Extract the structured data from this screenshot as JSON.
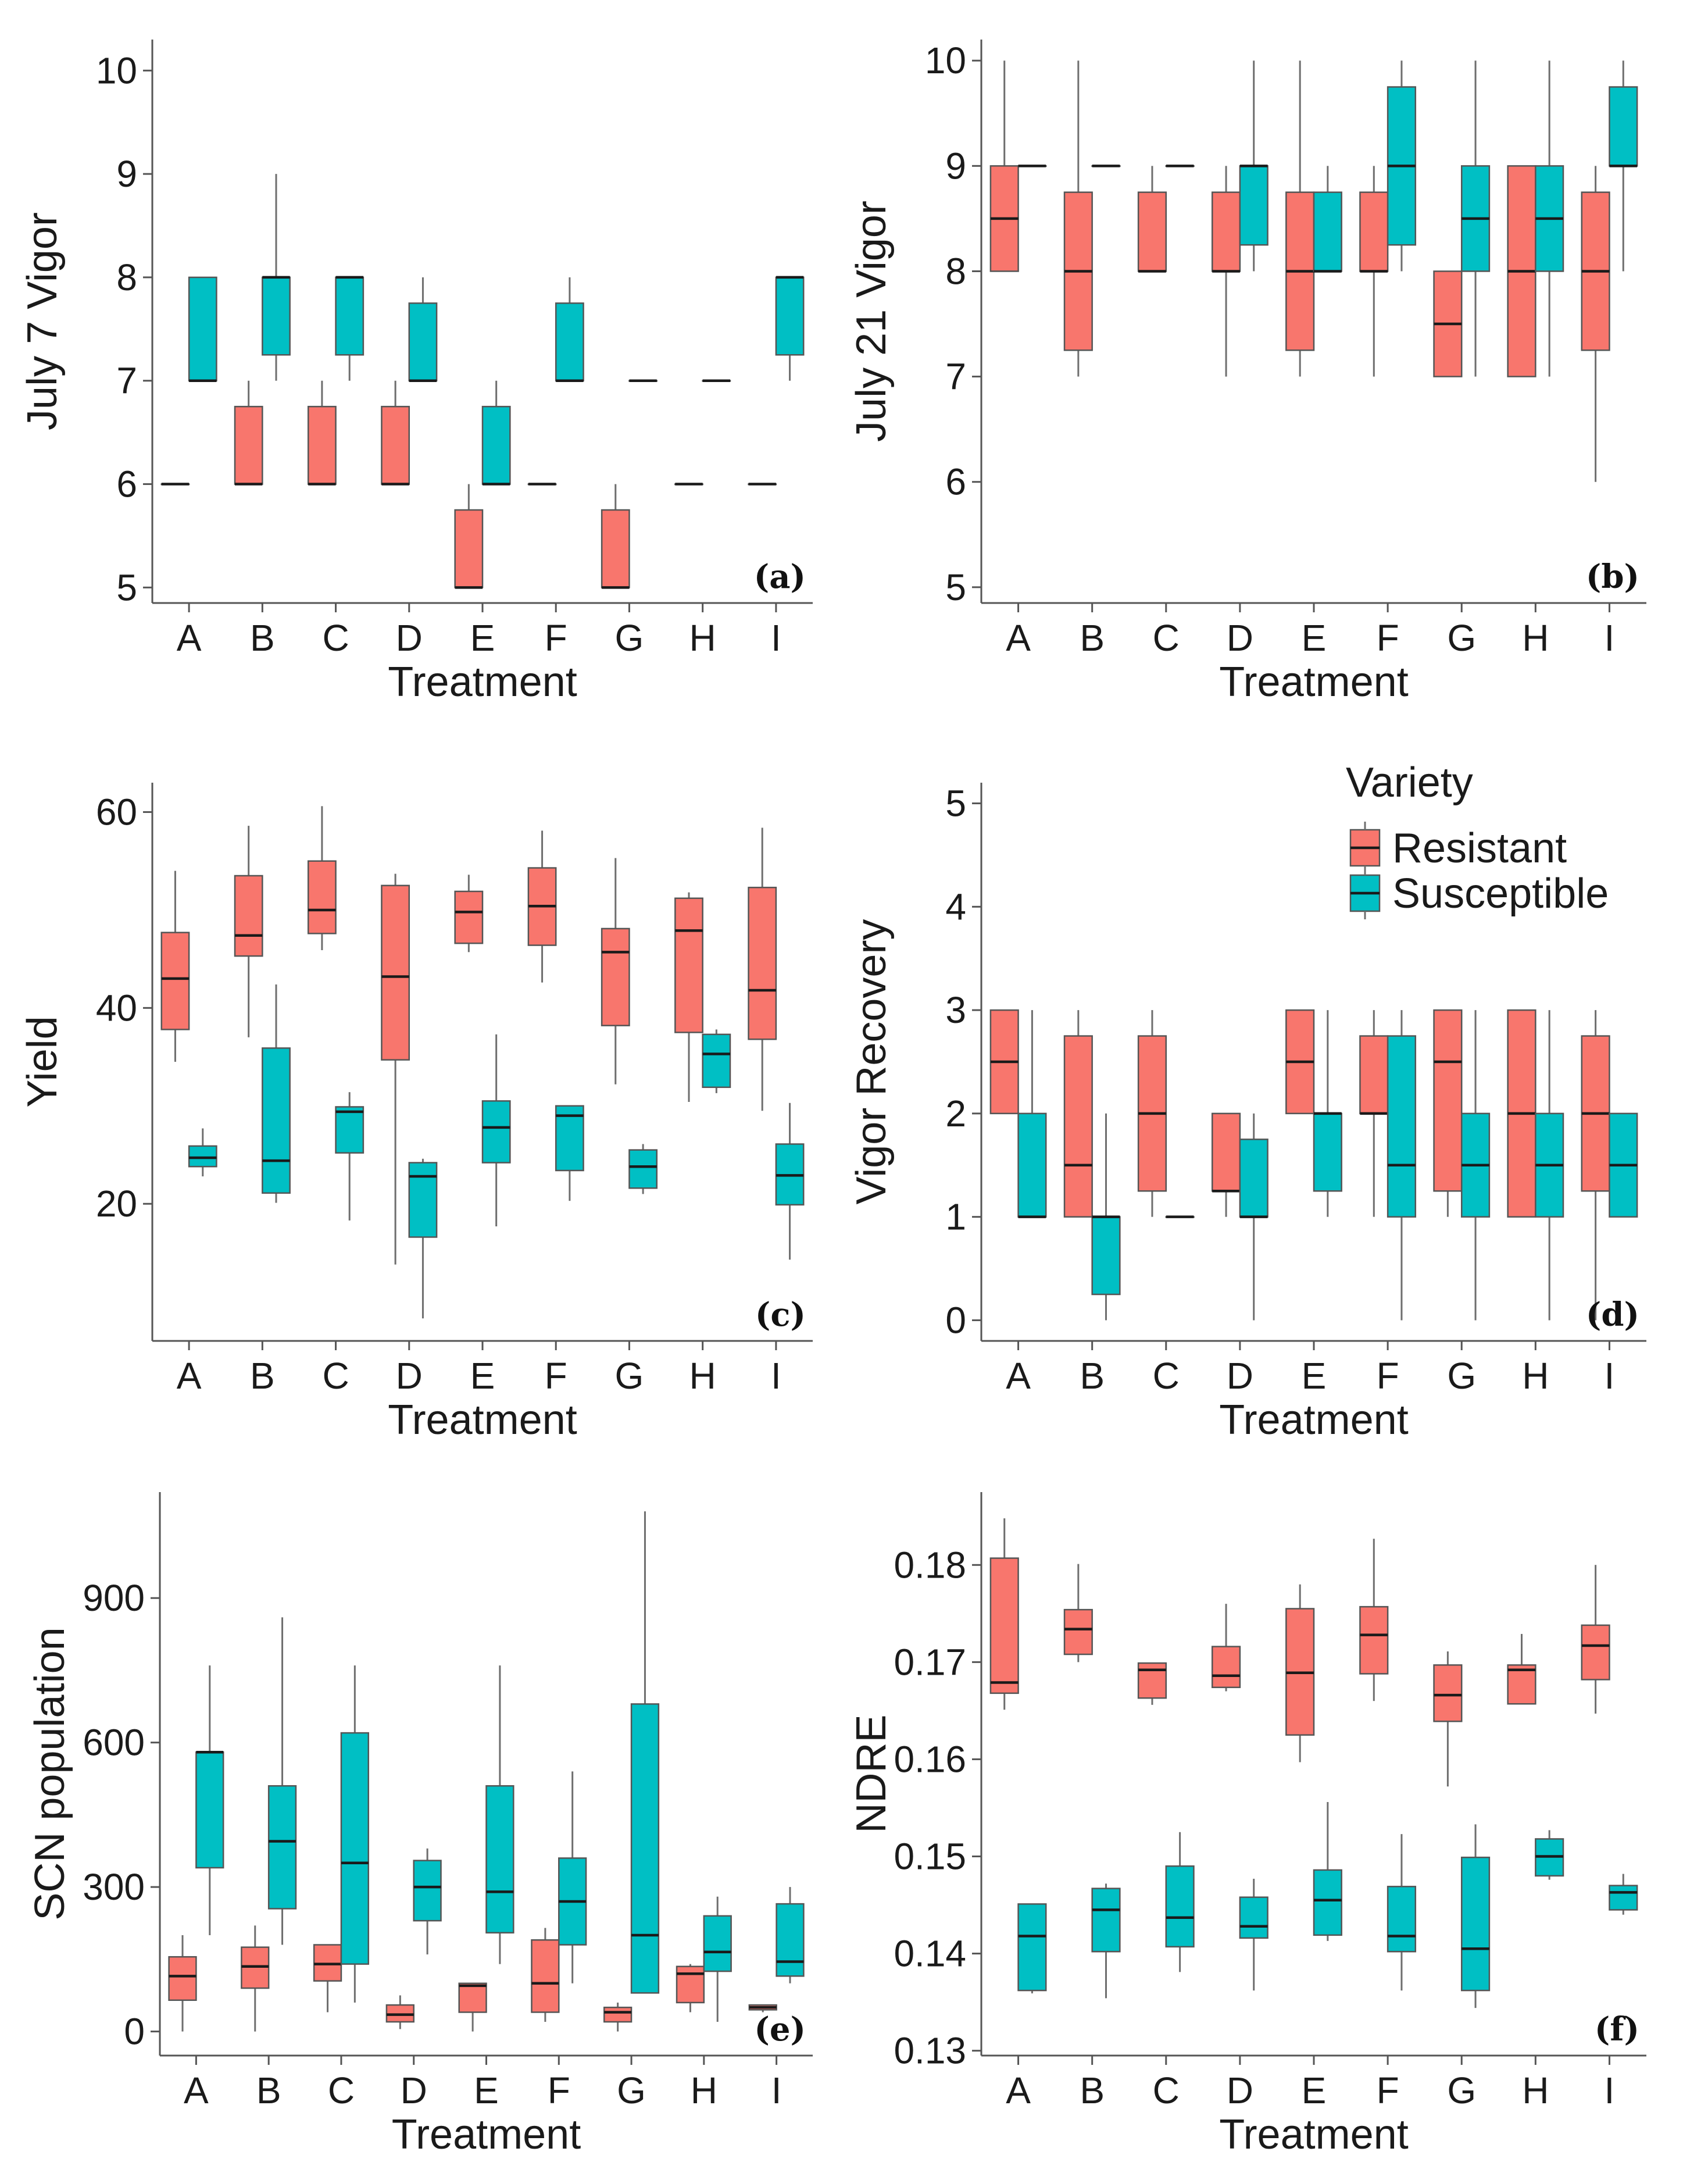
{
  "colors": {
    "resistant": "#F8766D",
    "susceptible": "#00BFC4"
  },
  "legend": {
    "title": "Variety",
    "items": [
      "Resistant",
      "Susceptible"
    ]
  },
  "chart_data": [
    {
      "id": "a",
      "tag": "(a)",
      "type": "box",
      "xlabel": "Treatment",
      "ylabel": "July 7 Vigor",
      "ylim": [
        4.85,
        10.3
      ],
      "yticks": [
        5,
        6,
        7,
        8,
        9,
        10
      ],
      "categories": [
        "A",
        "B",
        "C",
        "D",
        "E",
        "F",
        "G",
        "H",
        "I"
      ],
      "series": [
        {
          "name": "Resistant",
          "boxes": [
            [
              6,
              6,
              6,
              6,
              6
            ],
            [
              6,
              6,
              6,
              6.75,
              7
            ],
            [
              6,
              6,
              6,
              6.75,
              7
            ],
            [
              6,
              6,
              6,
              6.75,
              7
            ],
            [
              5,
              5,
              5,
              5.75,
              6
            ],
            [
              6,
              6,
              6,
              6,
              6
            ],
            [
              5,
              5,
              5,
              5.75,
              6
            ],
            [
              6,
              6,
              6,
              6,
              6
            ],
            [
              6,
              6,
              6,
              6,
              6
            ]
          ]
        },
        {
          "name": "Susceptible",
          "boxes": [
            [
              7,
              7,
              7,
              8,
              8
            ],
            [
              7,
              7.25,
              8,
              8,
              9
            ],
            [
              7,
              7.25,
              8,
              8,
              8
            ],
            [
              7,
              7,
              7,
              7.75,
              8
            ],
            [
              6,
              6,
              6,
              6.75,
              7
            ],
            [
              7,
              7,
              7,
              7.75,
              8
            ],
            [
              7,
              7,
              7,
              7,
              7
            ],
            [
              7,
              7,
              7,
              7,
              7
            ],
            [
              7,
              7.25,
              8,
              8,
              8
            ]
          ]
        }
      ]
    },
    {
      "id": "b",
      "tag": "(b)",
      "type": "box",
      "xlabel": "Treatment",
      "ylabel": "July 21 Vigor",
      "ylim": [
        4.85,
        10.2
      ],
      "yticks": [
        5,
        6,
        7,
        8,
        9,
        10
      ],
      "categories": [
        "A",
        "B",
        "C",
        "D",
        "E",
        "F",
        "G",
        "H",
        "I"
      ],
      "series": [
        {
          "name": "Resistant",
          "boxes": [
            [
              8,
              8,
              8.5,
              9,
              10
            ],
            [
              7,
              7.25,
              8,
              8.75,
              10
            ],
            [
              8,
              8,
              8,
              8.75,
              9
            ],
            [
              7,
              8,
              8,
              8.75,
              9
            ],
            [
              7,
              7.25,
              8,
              8.75,
              10
            ],
            [
              7,
              8,
              8,
              8.75,
              9
            ],
            [
              7,
              7,
              7.5,
              8,
              8
            ],
            [
              7,
              7,
              8,
              9,
              9
            ],
            [
              6,
              7.25,
              8,
              8.75,
              9
            ]
          ]
        },
        {
          "name": "Susceptible",
          "boxes": [
            [
              9,
              9,
              9,
              9,
              9
            ],
            [
              9,
              9,
              9,
              9,
              9
            ],
            [
              9,
              9,
              9,
              9,
              9
            ],
            [
              8,
              8.25,
              9,
              9,
              10
            ],
            [
              8,
              8,
              8,
              8.75,
              9
            ],
            [
              8,
              8.25,
              9,
              9.75,
              10
            ],
            [
              7,
              8,
              8.5,
              9,
              10
            ],
            [
              7,
              8,
              8.5,
              9,
              10
            ],
            [
              8,
              9,
              9,
              9.75,
              10
            ]
          ]
        }
      ]
    },
    {
      "id": "c",
      "tag": "(c)",
      "type": "box",
      "xlabel": "Treatment",
      "ylabel": "Yield",
      "ylim": [
        6,
        63
      ],
      "yticks": [
        20,
        40,
        60
      ],
      "categories": [
        "A",
        "B",
        "C",
        "D",
        "E",
        "F",
        "G",
        "H",
        "I"
      ],
      "series": [
        {
          "name": "Resistant",
          "boxes": [
            [
              34.5,
              37.8,
              43,
              47.7,
              54
            ],
            [
              37,
              45.3,
              47.4,
              53.5,
              58.6
            ],
            [
              45.9,
              47.6,
              50,
              55,
              60.6
            ],
            [
              13.8,
              34.7,
              43.2,
              52.5,
              53.7
            ],
            [
              45.7,
              46.6,
              49.8,
              51.9,
              53.6
            ],
            [
              42.6,
              46.4,
              50.4,
              54.3,
              58.1
            ],
            [
              32.2,
              38.2,
              45.7,
              48.1,
              55.3
            ],
            [
              30.4,
              37.5,
              47.9,
              51.2,
              51.8
            ],
            [
              29.5,
              36.8,
              41.8,
              52.3,
              58.4
            ]
          ]
        },
        {
          "name": "Susceptible",
          "boxes": [
            [
              22.8,
              23.8,
              24.7,
              25.9,
              27.7
            ],
            [
              20.1,
              21.1,
              24.4,
              35.9,
              42.4
            ],
            [
              18.3,
              25.2,
              29.4,
              29.9,
              31.4
            ],
            [
              8.3,
              16.6,
              22.8,
              24.2,
              24.6
            ],
            [
              17.7,
              24.2,
              27.8,
              30.5,
              37.3
            ],
            [
              20.3,
              23.4,
              29,
              30,
              30
            ],
            [
              21,
              21.6,
              23.8,
              25.5,
              26.1
            ],
            [
              31.3,
              31.9,
              35.3,
              37.3,
              37.8
            ],
            [
              14.3,
              19.9,
              22.9,
              26.1,
              30.3
            ]
          ]
        }
      ]
    },
    {
      "id": "d",
      "tag": "(d)",
      "type": "box",
      "xlabel": "Treatment",
      "ylabel": "Vigor Recovery",
      "ylim": [
        -0.2,
        5.2
      ],
      "yticks": [
        0,
        1,
        2,
        3,
        4,
        5
      ],
      "categories": [
        "A",
        "B",
        "C",
        "D",
        "E",
        "F",
        "G",
        "H",
        "I"
      ],
      "series": [
        {
          "name": "Resistant",
          "boxes": [
            [
              2,
              2,
              2.5,
              3,
              3
            ],
            [
              1,
              1,
              1.5,
              2.75,
              3
            ],
            [
              1,
              1.25,
              2,
              2.75,
              3
            ],
            [
              1,
              1.25,
              1.25,
              2,
              2
            ],
            [
              2,
              2,
              2.5,
              3,
              3
            ],
            [
              1,
              2,
              2,
              2.75,
              3
            ],
            [
              1,
              1.25,
              2.5,
              3,
              3
            ],
            [
              1,
              1,
              2,
              3,
              3
            ],
            [
              0,
              1.25,
              2,
              2.75,
              3
            ]
          ]
        },
        {
          "name": "Susceptible",
          "boxes": [
            [
              1,
              1,
              1,
              2,
              3
            ],
            [
              0,
              0.25,
              1,
              1,
              2
            ],
            [
              1,
              1,
              1,
              1,
              1
            ],
            [
              0,
              1,
              1,
              1.75,
              2
            ],
            [
              1,
              1.25,
              2,
              2,
              3
            ],
            [
              0,
              1,
              1.5,
              2.75,
              3
            ],
            [
              0,
              1,
              1.5,
              2,
              3
            ],
            [
              0,
              1,
              1.5,
              2,
              3
            ],
            [
              1,
              1,
              1.5,
              2,
              2
            ]
          ]
        }
      ]
    },
    {
      "id": "e",
      "tag": "(e)",
      "type": "box",
      "xlabel": "Treatment",
      "ylabel": "SCN population",
      "ylim": [
        -50,
        1120
      ],
      "yticks": [
        0,
        300,
        600,
        900
      ],
      "categories": [
        "A",
        "B",
        "C",
        "D",
        "E",
        "F",
        "G",
        "H",
        "I"
      ],
      "series": [
        {
          "name": "Resistant",
          "boxes": [
            [
              0,
              65,
              115,
              155,
              200
            ],
            [
              0,
              90,
              135,
              175,
              220
            ],
            [
              40,
              105,
              140,
              180,
              180
            ],
            [
              5,
              20,
              35,
              55,
              75
            ],
            [
              0,
              40,
              95,
              100,
              100
            ],
            [
              20,
              40,
              100,
              190,
              215
            ],
            [
              0,
              20,
              40,
              50,
              60
            ],
            [
              40,
              60,
              120,
              135,
              140
            ],
            [
              40,
              45,
              50,
              55,
              55
            ]
          ]
        },
        {
          "name": "Susceptible",
          "boxes": [
            [
              200,
              340,
              580,
              580,
              760
            ],
            [
              180,
              255,
              395,
              510,
              860
            ],
            [
              60,
              140,
              350,
              620,
              760
            ],
            [
              160,
              230,
              300,
              355,
              380
            ],
            [
              140,
              205,
              290,
              510,
              760
            ],
            [
              100,
              180,
              270,
              360,
              540
            ],
            [
              80,
              80,
              200,
              680,
              1080
            ],
            [
              20,
              125,
              165,
              240,
              280
            ],
            [
              100,
              115,
              145,
              265,
              300
            ]
          ]
        }
      ]
    },
    {
      "id": "f",
      "tag": "(f)",
      "type": "box",
      "xlabel": "Treatment",
      "ylabel": "NDRE",
      "ylim": [
        0.1295,
        0.1875
      ],
      "yticks": [
        0.13,
        0.14,
        0.15,
        0.16,
        0.17,
        0.18
      ],
      "categories": [
        "A",
        "B",
        "C",
        "D",
        "E",
        "F",
        "G",
        "H",
        "I"
      ],
      "series": [
        {
          "name": "Resistant",
          "boxes": [
            [
              0.1651,
              0.1668,
              0.1679,
              0.1807,
              0.1848
            ],
            [
              0.17,
              0.1708,
              0.1734,
              0.1754,
              0.1801
            ],
            [
              0.1656,
              0.1663,
              0.1692,
              0.1699,
              0.1699
            ],
            [
              0.167,
              0.1674,
              0.1686,
              0.1716,
              0.176
            ],
            [
              0.1597,
              0.1625,
              0.1689,
              0.1755,
              0.178
            ],
            [
              0.166,
              0.1688,
              0.1728,
              0.1757,
              0.1827
            ],
            [
              0.1572,
              0.1639,
              0.1666,
              0.1697,
              0.1711
            ],
            [
              0.1657,
              0.1657,
              0.1692,
              0.1697,
              0.1729
            ],
            [
              0.1647,
              0.1682,
              0.1717,
              0.1738,
              0.18
            ]
          ]
        },
        {
          "name": "Susceptible",
          "boxes": [
            [
              0.1359,
              0.1362,
              0.1418,
              0.1451,
              0.1451
            ],
            [
              0.1354,
              0.1402,
              0.1445,
              0.1467,
              0.1472
            ],
            [
              0.1381,
              0.1407,
              0.1437,
              0.149,
              0.1525
            ],
            [
              0.1362,
              0.1416,
              0.1428,
              0.1458,
              0.1477
            ],
            [
              0.1413,
              0.1419,
              0.1455,
              0.1486,
              0.1556
            ],
            [
              0.1362,
              0.1402,
              0.1418,
              0.1469,
              0.1523
            ],
            [
              0.1344,
              0.1362,
              0.1405,
              0.1499,
              0.1533
            ],
            [
              0.1476,
              0.148,
              0.15,
              0.1518,
              0.1527
            ],
            [
              0.144,
              0.1445,
              0.1463,
              0.147,
              0.1482
            ]
          ]
        }
      ]
    }
  ]
}
